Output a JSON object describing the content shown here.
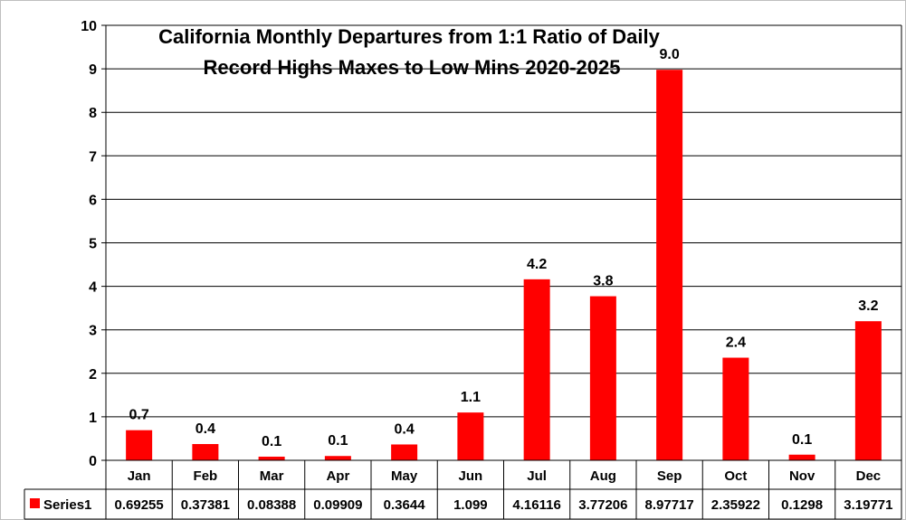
{
  "chart_data": {
    "type": "bar",
    "title_lines": [
      "California Monthly Departures from 1:1 Ratio of Daily",
      "Record Highs Maxes to Low Mins 2020-2025"
    ],
    "categories": [
      "Jan",
      "Feb",
      "Mar",
      "Apr",
      "May",
      "Jun",
      "Jul",
      "Aug",
      "Sep",
      "Oct",
      "Nov",
      "Dec"
    ],
    "series": [
      {
        "name": "Series1",
        "color": "#ff0000",
        "values": [
          0.69255,
          0.37381,
          0.08388,
          0.09909,
          0.3644,
          1.099,
          4.16116,
          3.77206,
          8.97717,
          2.35922,
          0.1298,
          3.19771
        ],
        "value_labels": [
          "0.69255",
          "0.37381",
          "0.08388",
          "0.09909",
          "0.3644",
          "1.099",
          "4.16116",
          "3.77206",
          "8.97717",
          "2.35922",
          "0.1298",
          "3.19771"
        ],
        "data_labels": [
          "0.7",
          "0.4",
          "0.1",
          "0.1",
          "0.4",
          "1.1",
          "4.2",
          "3.8",
          "9.0",
          "2.4",
          "0.1",
          "3.2"
        ]
      }
    ],
    "yticks": [
      "0",
      "1",
      "2",
      "3",
      "4",
      "5",
      "6",
      "7",
      "8",
      "9",
      "10"
    ],
    "ylim": [
      0,
      10
    ],
    "grid": true,
    "data_table": true
  }
}
